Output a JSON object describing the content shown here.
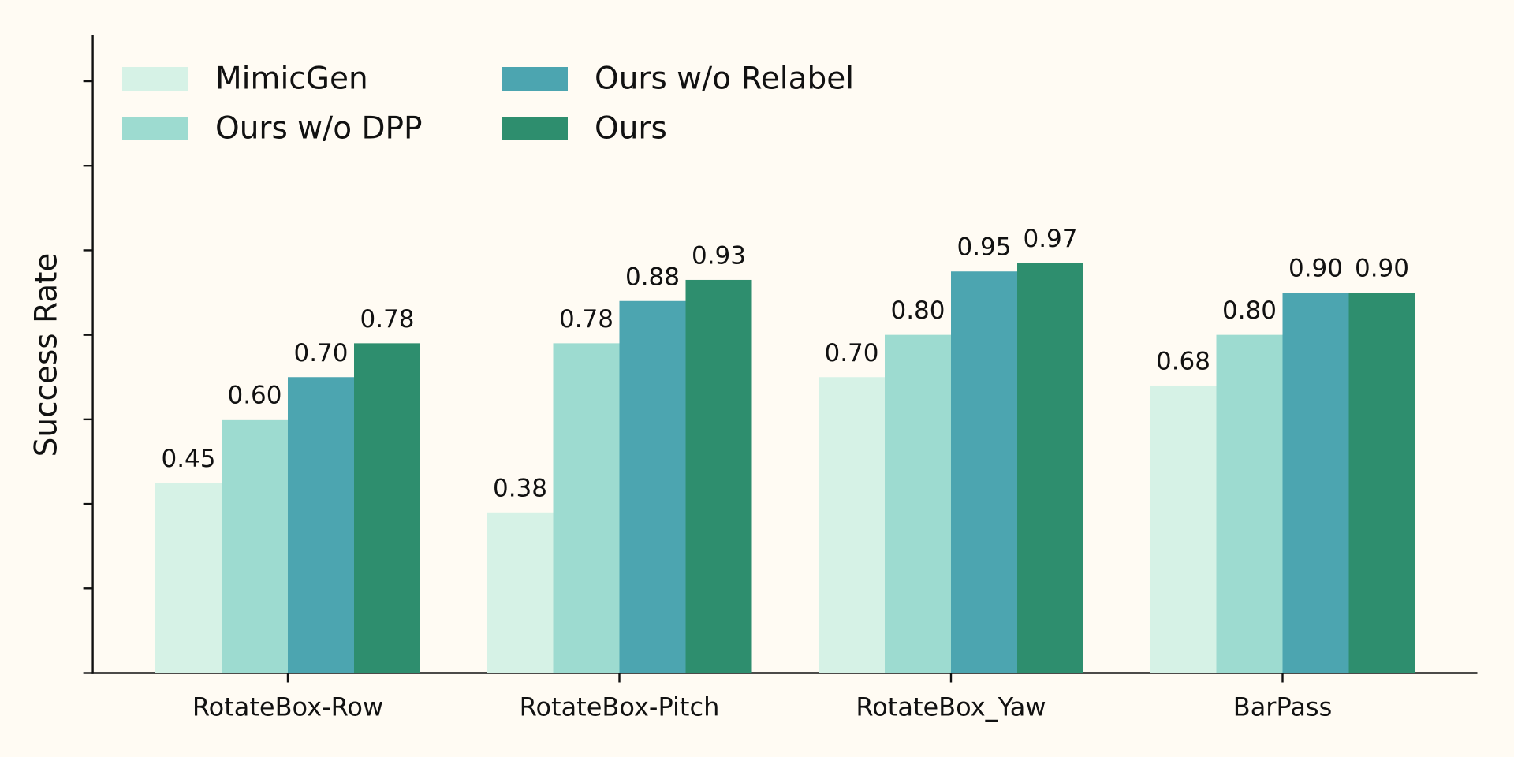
{
  "chart_data": {
    "type": "bar",
    "y_label": "Success Rate",
    "categories": [
      "RotateBox-Row",
      "RotateBox-Pitch",
      "RotateBox_Yaw",
      "BarPass"
    ],
    "series": [
      {
        "name": "MimicGen",
        "color": "#d6f2e6",
        "values": [
          0.45,
          0.38,
          0.7,
          0.68
        ],
        "value_labels": [
          "0.45",
          "0.38",
          "0.70",
          "0.68"
        ]
      },
      {
        "name": "Ours w/o DPP",
        "color": "#9ddbd0",
        "values": [
          0.6,
          0.78,
          0.8,
          0.8
        ],
        "value_labels": [
          "0.60",
          "0.78",
          "0.80",
          "0.80"
        ]
      },
      {
        "name": "Ours w/o Relabel",
        "color": "#4ca5b0",
        "values": [
          0.7,
          0.88,
          0.95,
          0.9
        ],
        "value_labels": [
          "0.70",
          "0.88",
          "0.95",
          "0.90"
        ]
      },
      {
        "name": "Ours",
        "color": "#2e8e6e",
        "values": [
          0.78,
          0.93,
          0.97,
          0.9
        ],
        "value_labels": [
          "0.78",
          "0.93",
          "0.97",
          "0.90"
        ]
      }
    ],
    "ylim": [
      0,
      1.5
    ],
    "yticks": [
      0,
      0.2,
      0.4,
      0.6,
      0.8,
      1.0,
      1.2,
      1.4
    ],
    "legend": "upper left"
  }
}
